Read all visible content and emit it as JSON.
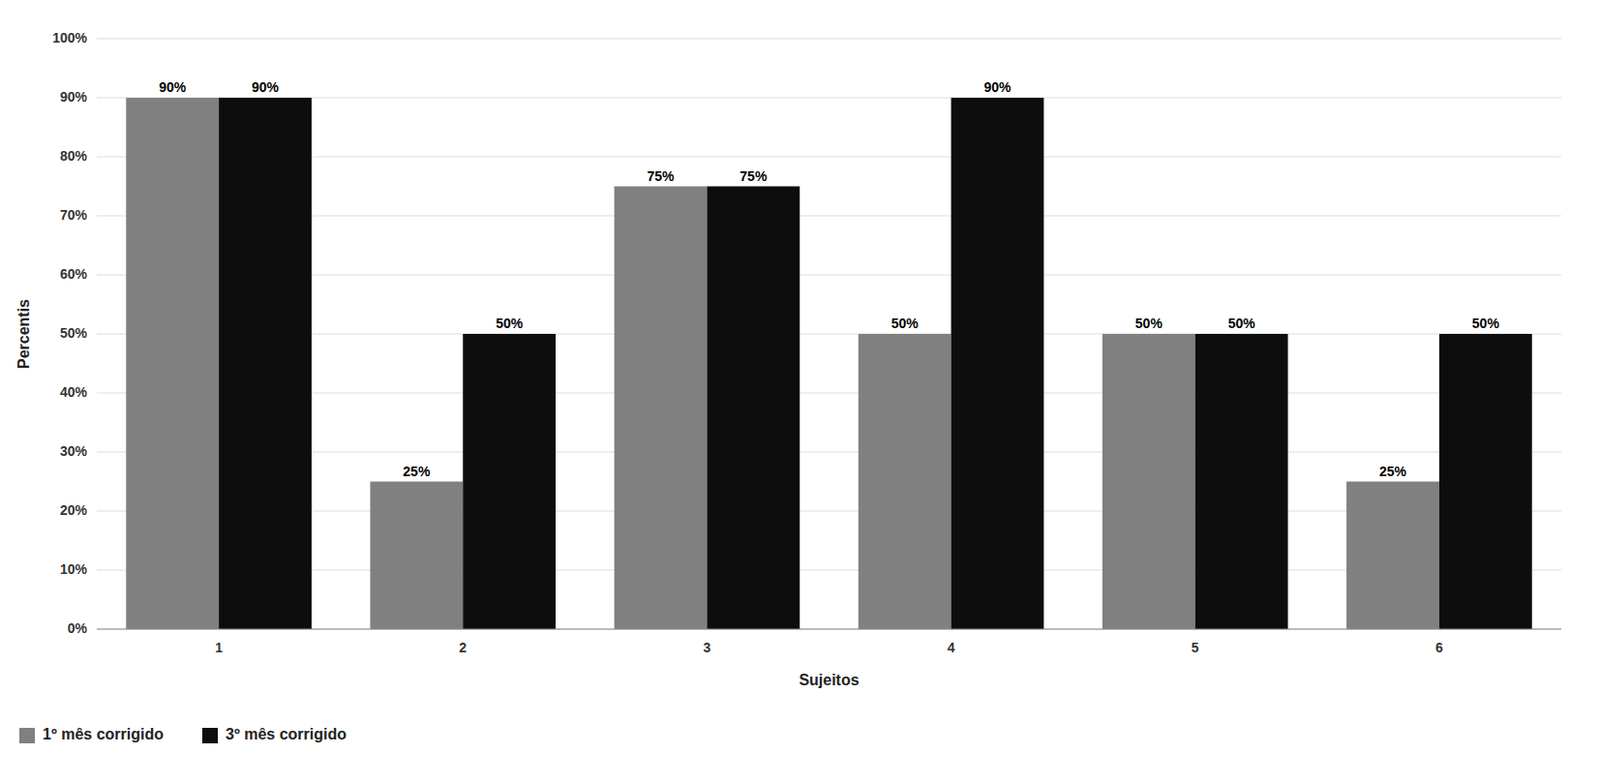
{
  "chart_data": {
    "type": "bar",
    "categories": [
      "1",
      "2",
      "3",
      "4",
      "5",
      "6"
    ],
    "series": [
      {
        "name": "1º mês corrigido",
        "color": "#808080",
        "values": [
          90,
          25,
          75,
          50,
          50,
          25
        ],
        "value_labels": [
          "90%",
          "25%",
          "75%",
          "50%",
          "50%",
          "25%"
        ]
      },
      {
        "name": "3º mês corrigido",
        "color": "#0d0d0d",
        "values": [
          90,
          50,
          75,
          90,
          50,
          50
        ],
        "value_labels": [
          "90%",
          "50%",
          "75%",
          "90%",
          "50%",
          "50%"
        ]
      }
    ],
    "x_label": "Sujeitos",
    "y_label": "Percentis",
    "ylim": [
      0,
      100
    ],
    "yticks": [
      {
        "value": 0,
        "label": "0%"
      },
      {
        "value": 10,
        "label": "10%"
      },
      {
        "value": 20,
        "label": "20%"
      },
      {
        "value": 30,
        "label": "30%"
      },
      {
        "value": 40,
        "label": "40%"
      },
      {
        "value": 50,
        "label": "50%"
      },
      {
        "value": 60,
        "label": "60%"
      },
      {
        "value": 70,
        "label": "70%"
      },
      {
        "value": 80,
        "label": "80%"
      },
      {
        "value": 90,
        "label": "90%"
      },
      {
        "value": 100,
        "label": "100%"
      }
    ],
    "grid": true,
    "data_labels": true,
    "legend": "lower left"
  }
}
